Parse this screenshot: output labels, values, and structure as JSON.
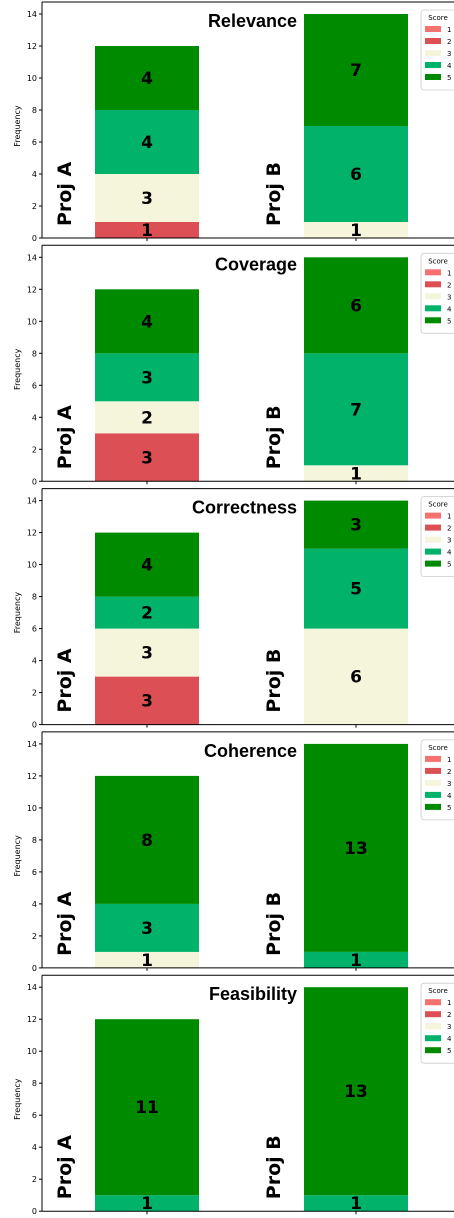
{
  "colors": {
    "score_1": "#f87171",
    "score_2": "#dc5055",
    "score_3": "#f5f5dc",
    "score_4": "#00b26a",
    "score_5": "#008a00",
    "axis": "#000000",
    "text": "#000000"
  },
  "legend": {
    "title": "Score",
    "entries": [
      "1",
      "2",
      "3",
      "4",
      "5"
    ]
  },
  "chart_data": [
    {
      "type": "bar",
      "stacked": true,
      "title": "Relevance",
      "ylabel": "Frequency",
      "ylim": [
        0,
        14
      ],
      "yticks": [
        "0",
        "2",
        "4",
        "6",
        "8",
        "10",
        "12",
        "14"
      ],
      "categories": [
        "Proj A",
        "Proj B"
      ],
      "series": [
        {
          "name": "1",
          "values": [
            0,
            0
          ]
        },
        {
          "name": "2",
          "values": [
            1,
            0
          ]
        },
        {
          "name": "3",
          "values": [
            3,
            1
          ]
        },
        {
          "name": "4",
          "values": [
            4,
            6
          ]
        },
        {
          "name": "5",
          "values": [
            4,
            7
          ]
        }
      ]
    },
    {
      "type": "bar",
      "stacked": true,
      "title": "Coverage",
      "ylabel": "Frequency",
      "ylim": [
        0,
        14
      ],
      "yticks": [
        "0",
        "2",
        "4",
        "6",
        "8",
        "10",
        "12",
        "14"
      ],
      "categories": [
        "Proj A",
        "Proj B"
      ],
      "series": [
        {
          "name": "1",
          "values": [
            0,
            0
          ]
        },
        {
          "name": "2",
          "values": [
            3,
            0
          ]
        },
        {
          "name": "3",
          "values": [
            2,
            1
          ]
        },
        {
          "name": "4",
          "values": [
            3,
            7
          ]
        },
        {
          "name": "5",
          "values": [
            4,
            6
          ]
        }
      ]
    },
    {
      "type": "bar",
      "stacked": true,
      "title": "Correctness",
      "ylabel": "Frequency",
      "ylim": [
        0,
        14
      ],
      "yticks": [
        "0",
        "2",
        "4",
        "6",
        "8",
        "10",
        "12",
        "14"
      ],
      "categories": [
        "Proj A",
        "Proj B"
      ],
      "series": [
        {
          "name": "1",
          "values": [
            0,
            0
          ]
        },
        {
          "name": "2",
          "values": [
            3,
            0
          ]
        },
        {
          "name": "3",
          "values": [
            3,
            6
          ]
        },
        {
          "name": "4",
          "values": [
            2,
            5
          ]
        },
        {
          "name": "5",
          "values": [
            4,
            3
          ]
        }
      ]
    },
    {
      "type": "bar",
      "stacked": true,
      "title": "Coherence",
      "ylabel": "Frequency",
      "ylim": [
        0,
        14
      ],
      "yticks": [
        "0",
        "2",
        "4",
        "6",
        "8",
        "10",
        "12",
        "14"
      ],
      "categories": [
        "Proj A",
        "Proj B"
      ],
      "series": [
        {
          "name": "1",
          "values": [
            0,
            0
          ]
        },
        {
          "name": "2",
          "values": [
            0,
            0
          ]
        },
        {
          "name": "3",
          "values": [
            1,
            0
          ]
        },
        {
          "name": "4",
          "values": [
            3,
            1
          ]
        },
        {
          "name": "5",
          "values": [
            8,
            13
          ]
        }
      ]
    },
    {
      "type": "bar",
      "stacked": true,
      "title": "Feasibility",
      "ylabel": "Frequency",
      "ylim": [
        0,
        14
      ],
      "yticks": [
        "0",
        "2",
        "4",
        "6",
        "8",
        "10",
        "12",
        "14"
      ],
      "categories": [
        "Proj A",
        "Proj B"
      ],
      "series": [
        {
          "name": "1",
          "values": [
            0,
            0
          ]
        },
        {
          "name": "2",
          "values": [
            0,
            0
          ]
        },
        {
          "name": "3",
          "values": [
            0,
            0
          ]
        },
        {
          "name": "4",
          "values": [
            1,
            1
          ]
        },
        {
          "name": "5",
          "values": [
            11,
            13
          ]
        }
      ]
    }
  ]
}
